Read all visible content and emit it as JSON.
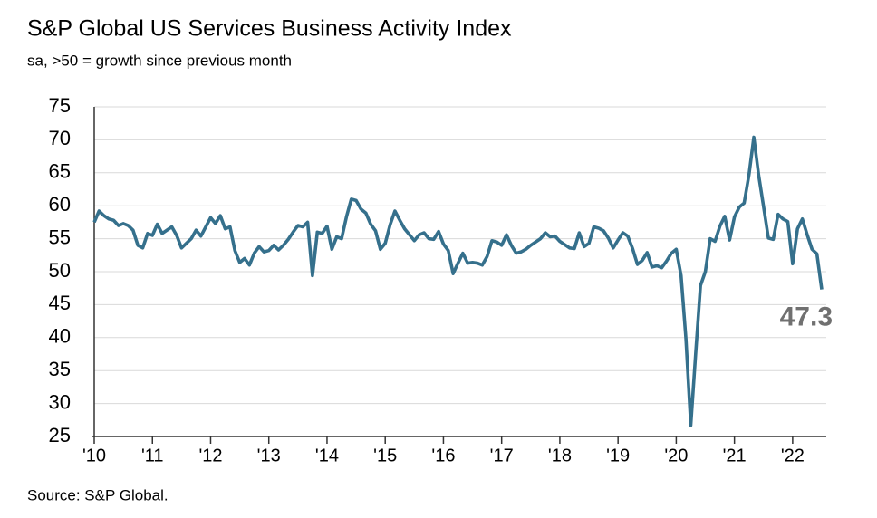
{
  "chart_data": {
    "type": "line",
    "title": "S&P Global US Services Business Activity Index",
    "subtitle": "sa, >50 = growth since previous month",
    "source": "Source: S&P Global.",
    "categories": [
      "'10",
      null,
      null,
      null,
      null,
      null,
      null,
      null,
      null,
      null,
      null,
      null,
      "'11",
      null,
      null,
      null,
      null,
      null,
      null,
      null,
      null,
      null,
      null,
      null,
      "'12",
      null,
      null,
      null,
      null,
      null,
      null,
      null,
      null,
      null,
      null,
      null,
      "'13",
      null,
      null,
      null,
      null,
      null,
      null,
      null,
      null,
      null,
      null,
      null,
      "'14",
      null,
      null,
      null,
      null,
      null,
      null,
      null,
      null,
      null,
      null,
      null,
      "'15",
      null,
      null,
      null,
      null,
      null,
      null,
      null,
      null,
      null,
      null,
      null,
      "'16",
      null,
      null,
      null,
      null,
      null,
      null,
      null,
      null,
      null,
      null,
      null,
      "'17",
      null,
      null,
      null,
      null,
      null,
      null,
      null,
      null,
      null,
      null,
      null,
      "'18",
      null,
      null,
      null,
      null,
      null,
      null,
      null,
      null,
      null,
      null,
      null,
      "'19",
      null,
      null,
      null,
      null,
      null,
      null,
      null,
      null,
      null,
      null,
      null,
      "'20",
      null,
      null,
      null,
      null,
      null,
      null,
      null,
      null,
      null,
      null,
      null,
      "'21",
      null,
      null,
      null,
      null,
      null,
      null,
      null,
      null,
      null,
      null,
      null,
      "'22",
      null,
      null,
      null,
      null,
      null,
      null
    ],
    "series": [
      {
        "name": "Services Business Activity Index",
        "color": "#35708c",
        "values": [
          57.5,
          59.2,
          58.5,
          58.0,
          57.8,
          57.0,
          57.3,
          57.0,
          56.3,
          54.0,
          53.6,
          55.8,
          55.5,
          57.2,
          55.8,
          56.3,
          56.8,
          55.5,
          53.6,
          54.3,
          55.0,
          56.3,
          55.4,
          56.8,
          58.2,
          57.3,
          58.5,
          56.5,
          56.8,
          53.2,
          51.4,
          52.0,
          51.0,
          52.8,
          53.8,
          53.0,
          53.2,
          54.0,
          53.3,
          54.0,
          54.9,
          56.0,
          57.0,
          56.8,
          57.5,
          49.4,
          56.0,
          55.8,
          56.9,
          53.4,
          55.3,
          55.0,
          58.3,
          61.0,
          60.8,
          59.5,
          58.9,
          57.2,
          56.2,
          53.4,
          54.3,
          57.1,
          59.2,
          57.8,
          56.5,
          55.6,
          54.7,
          55.6,
          55.9,
          55.0,
          54.9,
          56.1,
          54.2,
          53.2,
          49.7,
          51.3,
          52.8,
          51.3,
          51.4,
          51.3,
          51.0,
          52.3,
          54.7,
          54.5,
          54.0,
          55.6,
          54.0,
          52.8,
          53.0,
          53.4,
          54.0,
          54.5,
          55.0,
          55.9,
          55.3,
          55.4,
          54.6,
          54.1,
          53.6,
          53.5,
          55.9,
          53.8,
          54.3,
          56.8,
          56.6,
          56.2,
          55.1,
          53.6,
          54.8,
          55.9,
          55.4,
          53.5,
          51.1,
          51.7,
          52.9,
          50.7,
          50.9,
          50.6,
          51.6,
          52.8,
          53.4,
          49.4,
          39.8,
          26.7,
          37.5,
          47.9,
          50.0,
          55.0,
          54.6,
          56.9,
          58.4,
          54.8,
          58.3,
          59.8,
          60.4,
          64.7,
          70.4,
          64.6,
          59.9,
          55.1,
          54.9,
          58.7,
          58.0,
          57.6,
          51.2,
          56.5,
          58.0,
          55.6,
          53.4,
          52.7,
          47.3
        ],
        "value_labels": [
          null,
          null,
          null,
          null,
          null,
          null,
          null,
          null,
          null,
          null,
          null,
          null,
          null,
          null,
          null,
          null,
          null,
          null,
          null,
          null,
          null,
          null,
          null,
          null,
          null,
          null,
          null,
          null,
          null,
          null,
          null,
          null,
          null,
          null,
          null,
          null,
          null,
          null,
          null,
          null,
          null,
          null,
          null,
          null,
          null,
          null,
          null,
          null,
          null,
          null,
          null,
          null,
          null,
          null,
          null,
          null,
          null,
          null,
          null,
          null,
          null,
          null,
          null,
          null,
          null,
          null,
          null,
          null,
          null,
          null,
          null,
          null,
          null,
          null,
          null,
          null,
          null,
          null,
          null,
          null,
          null,
          null,
          null,
          null,
          null,
          null,
          null,
          null,
          null,
          null,
          null,
          null,
          null,
          null,
          null,
          null,
          null,
          null,
          null,
          null,
          null,
          null,
          null,
          null,
          null,
          null,
          null,
          null,
          null,
          null,
          null,
          null,
          null,
          null,
          null,
          null,
          null,
          null,
          null,
          null,
          null,
          null,
          null,
          null,
          null,
          null,
          null,
          null,
          null,
          null,
          null,
          null,
          null,
          null,
          null,
          null,
          null,
          null,
          null,
          null,
          null,
          null,
          null,
          null,
          null,
          null,
          null,
          null,
          null,
          null,
          "47.3"
        ]
      }
    ],
    "ylim": [
      25,
      75
    ],
    "yticks": [
      25,
      30,
      35,
      40,
      45,
      50,
      55,
      60,
      65,
      70,
      75
    ],
    "grid": true
  }
}
